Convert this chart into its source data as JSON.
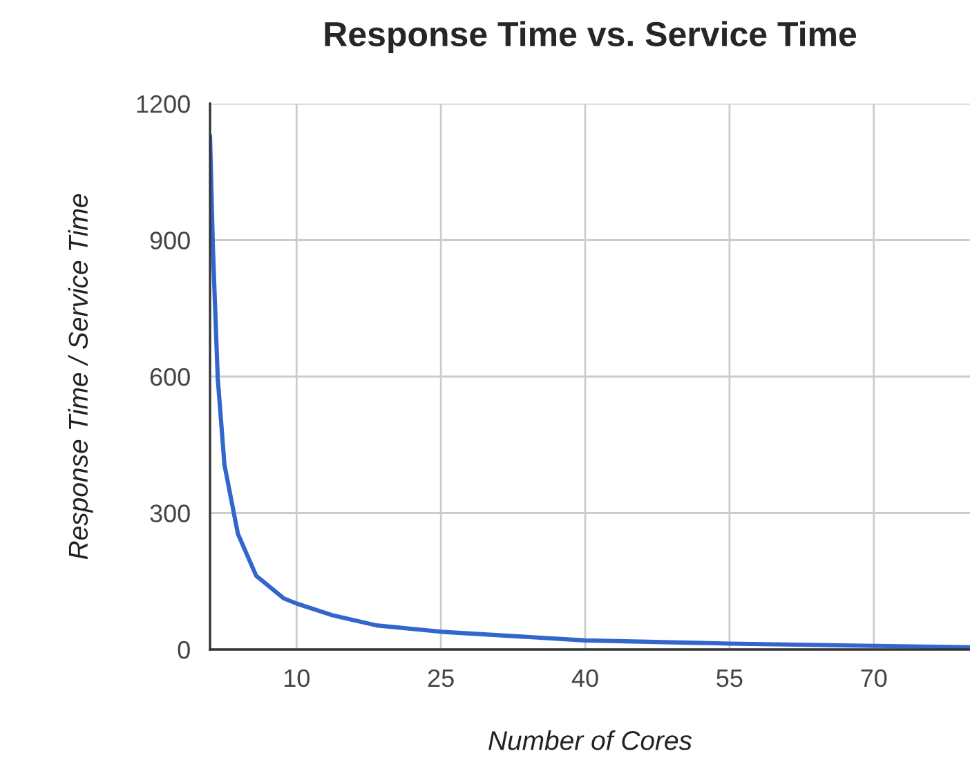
{
  "chart_data": {
    "type": "line",
    "title": "Response Time vs. Service Time",
    "xlabel": "Number of Cores",
    "ylabel": "Response Time / Service Time",
    "series": [
      {
        "color": "#3366cc",
        "x": [
          1,
          1.3,
          1.8,
          2.5,
          3.9,
          5.8,
          8.7,
          10,
          13.6,
          18.3,
          25,
          40,
          55,
          70,
          80
        ],
        "values": [
          1129,
          883,
          597,
          406,
          254,
          162,
          112,
          101,
          76,
          53,
          39,
          20,
          13,
          8,
          5
        ]
      }
    ],
    "xlim": [
      1,
      80
    ],
    "xticks": [
      10,
      25,
      40,
      55,
      70
    ],
    "ylim": [
      0,
      1200
    ],
    "yticks": [
      0,
      300,
      600,
      900,
      1200
    ],
    "grid": true,
    "marker": "none",
    "line_style": "solid"
  }
}
